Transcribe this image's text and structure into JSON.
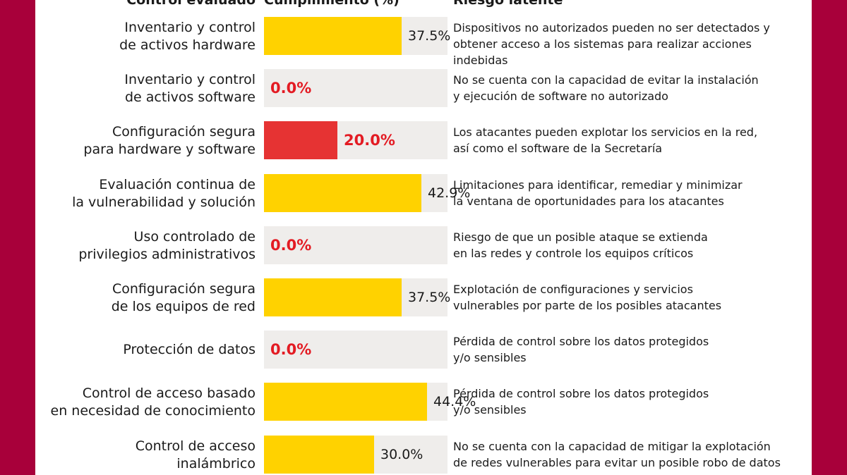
{
  "headers": {
    "control": "Control evaluado",
    "compliance": "Cumplimiento (%)",
    "risk": "Riesgo latente"
  },
  "colors": {
    "background": "#a8003a",
    "bar_ok": "#ffd200",
    "bar_low": "#e63333",
    "track": "#efedeb",
    "pct_red": "#e31b23",
    "pct_dark": "#1a1a1a"
  },
  "chart_data": {
    "type": "bar",
    "orientation": "horizontal",
    "xlim": [
      0,
      100
    ],
    "categories": [
      [
        "Inventario y control",
        "de activos hardware"
      ],
      [
        "Inventario y control",
        "de activos software"
      ],
      [
        "Configuración segura",
        "para hardware y software"
      ],
      [
        "Evaluación continua de",
        "la vulnerabilidad y solución"
      ],
      [
        "Uso controlado de",
        "privilegios administrativos"
      ],
      [
        "Configuración segura",
        "de los equipos de red"
      ],
      [
        "Protección de datos"
      ],
      [
        "Control de acceso basado",
        "en necesidad de conocimiento"
      ],
      [
        "Control de acceso",
        "inalámbrico"
      ]
    ],
    "values": [
      37.5,
      0.0,
      20.0,
      42.9,
      0.0,
      37.5,
      0.0,
      44.4,
      30.0
    ],
    "value_labels": [
      "37.5%",
      "0.0%",
      "20.0%",
      "42.9%",
      "0.0%",
      "37.5%",
      "0.0%",
      "44.4%",
      "30.0%"
    ],
    "risks": [
      [
        "Dispositivos no autorizados pueden no ser detectados y",
        "obtener acceso a los sistemas para realizar acciones indebidas"
      ],
      [
        "No se cuenta con la capacidad de evitar la instalación",
        "y ejecución de software no autorizado"
      ],
      [
        "Los atacantes pueden explotar los servicios en la red,",
        "así como el software de la Secretaría"
      ],
      [
        "Limitaciones para identificar, remediar y minimizar",
        "la ventana de oportunidades para los atacantes"
      ],
      [
        "Riesgo de que un posible ataque se extienda",
        "en las redes y controle los equipos críticos"
      ],
      [
        "Explotación de configuraciones y servicios",
        "vulnerables por parte de los posibles atacantes"
      ],
      [
        "Pérdida de control sobre los datos protegidos",
        "y/o sensibles"
      ],
      [
        "Pérdida de control sobre los datos protegidos",
        "y/o sensibles"
      ],
      [
        "No se cuenta con la capacidad de mitigar la explotación",
        "de redes vulnerables para evitar un posible robo de datos"
      ]
    ]
  }
}
